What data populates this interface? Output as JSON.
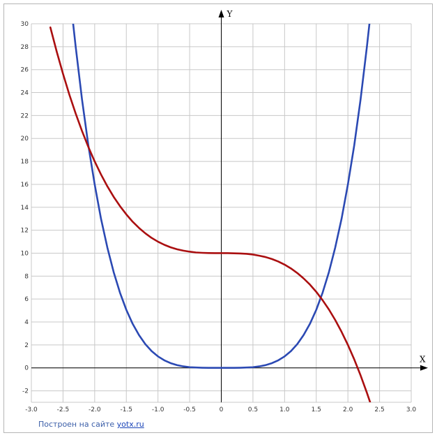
{
  "chart_data": {
    "type": "line",
    "title": "",
    "xlabel": "X",
    "ylabel": "Y",
    "xlim": [
      -3.0,
      3.0
    ],
    "ylim": [
      -3,
      30
    ],
    "x_ticks": [
      -3.0,
      -2.5,
      -2.0,
      -1.5,
      -1.0,
      -0.5,
      0,
      0.5,
      1.0,
      1.5,
      2.0,
      2.5,
      3.0
    ],
    "x_tick_labels": [
      "-3.0",
      "-2.5",
      "-2.0",
      "-1.5",
      "-1.0",
      "-0.5",
      "0",
      "0.5",
      "1.0",
      "1.5",
      "2.0",
      "2.5",
      "3.0"
    ],
    "y_ticks": [
      -2,
      0,
      2,
      4,
      6,
      8,
      10,
      12,
      14,
      16,
      18,
      20,
      22,
      24,
      26,
      28,
      30
    ],
    "y_tick_labels": [
      "-2",
      "0",
      "2",
      "4",
      "6",
      "8",
      "10",
      "12",
      "14",
      "16",
      "18",
      "20",
      "22",
      "24",
      "26",
      "28",
      "30"
    ],
    "grid": true,
    "series": [
      {
        "color": "#2b49b3",
        "x": [
          -2.35,
          -2.3,
          -2.2,
          -2.1,
          -2.0,
          -1.9,
          -1.8,
          -1.7,
          -1.6,
          -1.5,
          -1.4,
          -1.3,
          -1.2,
          -1.1,
          -1.0,
          -0.9,
          -0.8,
          -0.7,
          -0.6,
          -0.5,
          -0.4,
          -0.3,
          -0.2,
          -0.1,
          0,
          0.1,
          0.2,
          0.3,
          0.4,
          0.5,
          0.6,
          0.7,
          0.8,
          0.9,
          1.0,
          1.1,
          1.2,
          1.3,
          1.4,
          1.5,
          1.6,
          1.7,
          1.8,
          1.9,
          2.0,
          2.1,
          2.2,
          2.3,
          2.35
        ],
        "y": [
          30.5,
          28.0,
          23.4,
          19.4,
          16.0,
          13.0,
          10.5,
          8.35,
          6.55,
          5.06,
          3.84,
          2.86,
          2.07,
          1.46,
          1.0,
          0.66,
          0.41,
          0.24,
          0.13,
          0.06,
          0.03,
          0.01,
          0.0,
          0.0,
          0,
          0.0,
          0.0,
          0.01,
          0.03,
          0.06,
          0.13,
          0.24,
          0.41,
          0.66,
          1.0,
          1.46,
          2.07,
          2.86,
          3.84,
          5.06,
          6.55,
          8.35,
          10.5,
          13.0,
          16.0,
          19.4,
          23.4,
          28.0,
          30.5
        ]
      },
      {
        "color": "#aa0f10",
        "x": [
          -2.7,
          -2.6,
          -2.5,
          -2.4,
          -2.3,
          -2.2,
          -2.1,
          -2.0,
          -1.9,
          -1.8,
          -1.7,
          -1.6,
          -1.5,
          -1.4,
          -1.3,
          -1.2,
          -1.1,
          -1.0,
          -0.9,
          -0.8,
          -0.7,
          -0.6,
          -0.5,
          -0.4,
          -0.3,
          -0.2,
          -0.1,
          0,
          0.1,
          0.2,
          0.3,
          0.4,
          0.5,
          0.6,
          0.7,
          0.8,
          0.9,
          1.0,
          1.1,
          1.2,
          1.3,
          1.4,
          1.5,
          1.6,
          1.7,
          1.8,
          1.9,
          2.0,
          2.1,
          2.2,
          2.3,
          2.35
        ],
        "y": [
          29.68,
          27.58,
          25.63,
          23.82,
          22.17,
          20.65,
          19.26,
          18.0,
          16.86,
          15.83,
          14.91,
          14.1,
          13.38,
          12.74,
          12.2,
          11.73,
          11.33,
          11.0,
          10.73,
          10.51,
          10.34,
          10.22,
          10.13,
          10.06,
          10.03,
          10.01,
          10.0,
          10.0,
          10.0,
          9.99,
          9.97,
          9.94,
          9.88,
          9.78,
          9.66,
          9.49,
          9.27,
          9.0,
          8.67,
          8.27,
          7.8,
          7.26,
          6.63,
          5.9,
          5.09,
          4.17,
          3.14,
          2.0,
          0.74,
          -0.65,
          -2.17,
          -2.98
        ]
      }
    ]
  },
  "credit": {
    "text": "Построен на сайте ",
    "link": "yotx.ru"
  }
}
